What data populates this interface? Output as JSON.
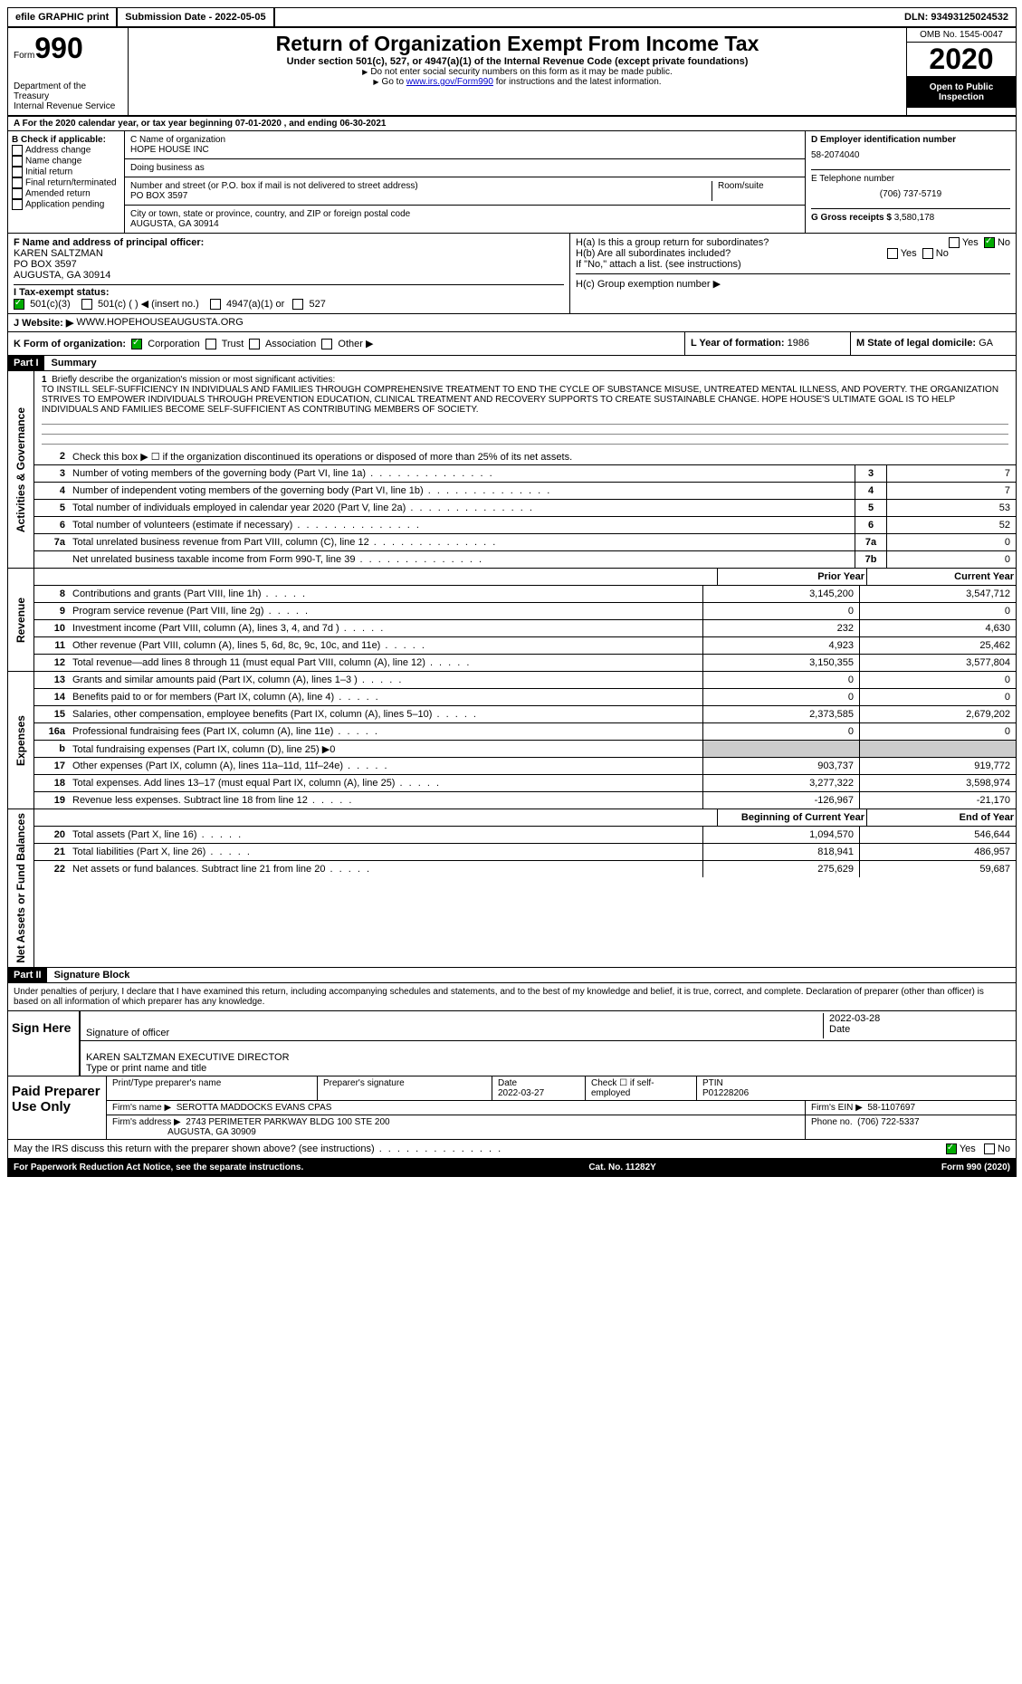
{
  "topbar": {
    "efile": "efile GRAPHIC print",
    "submission": "Submission Date - 2022-05-05",
    "dln_label": "DLN:",
    "dln": "93493125024532"
  },
  "header": {
    "form_word": "Form",
    "form_num": "990",
    "dept": "Department of the Treasury",
    "irs": "Internal Revenue Service",
    "title": "Return of Organization Exempt From Income Tax",
    "subtitle": "Under section 501(c), 527, or 4947(a)(1) of the Internal Revenue Code (except private foundations)",
    "note1": "Do not enter social security numbers on this form as it may be made public.",
    "note2_pre": "Go to ",
    "note2_link": "www.irs.gov/Form990",
    "note2_post": " for instructions and the latest information.",
    "omb": "OMB No. 1545-0047",
    "year": "2020",
    "open": "Open to Public Inspection"
  },
  "rowA": "A For the 2020 calendar year, or tax year beginning 07-01-2020   , and ending 06-30-2021",
  "colB": {
    "label": "B Check if applicable:",
    "items": [
      "Address change",
      "Name change",
      "Initial return",
      "Final return/terminated",
      "Amended return",
      "Application pending"
    ]
  },
  "colC": {
    "name_label": "C Name of organization",
    "name": "HOPE HOUSE INC",
    "dba": "Doing business as",
    "addr_label": "Number and street (or P.O. box if mail is not delivered to street address)",
    "room": "Room/suite",
    "addr": "PO BOX 3597",
    "city_label": "City or town, state or province, country, and ZIP or foreign postal code",
    "city": "AUGUSTA, GA  30914"
  },
  "colD": {
    "ein_label": "D Employer identification number",
    "ein": "58-2074040",
    "phone_label": "E Telephone number",
    "phone": "(706) 737-5719",
    "gross_label": "G Gross receipts $",
    "gross": "3,580,178"
  },
  "rowF": {
    "label": "F Name and address of principal officer:",
    "name": "KAREN SALTZMAN",
    "addr1": "PO BOX 3597",
    "addr2": "AUGUSTA, GA  30914"
  },
  "rowH": {
    "ha": "H(a)  Is this a group return for subordinates?",
    "hb": "H(b)  Are all subordinates included?",
    "hb_note": "If \"No,\" attach a list. (see instructions)",
    "hc": "H(c)  Group exemption number ▶",
    "yes": "Yes",
    "no": "No"
  },
  "rowI": {
    "label": "I   Tax-exempt status:",
    "opt1": "501(c)(3)",
    "opt2": "501(c) (  ) ◀ (insert no.)",
    "opt3": "4947(a)(1) or",
    "opt4": "527"
  },
  "rowJ": {
    "label": "J  Website: ▶",
    "val": "WWW.HOPEHOUSEAUGUSTA.ORG"
  },
  "rowK": {
    "label": "K Form of organization:",
    "corp": "Corporation",
    "trust": "Trust",
    "assoc": "Association",
    "other": "Other ▶"
  },
  "rowL": {
    "label": "L Year of formation:",
    "val": "1986"
  },
  "rowM": {
    "label": "M State of legal domicile:",
    "val": "GA"
  },
  "part1": {
    "header": "Part I",
    "title": "Summary",
    "line1_label": "Briefly describe the organization's mission or most significant activities:",
    "mission": "TO INSTILL SELF-SUFFICIENCY IN INDIVIDUALS AND FAMILIES THROUGH COMPREHENSIVE TREATMENT TO END THE CYCLE OF SUBSTANCE MISUSE, UNTREATED MENTAL ILLNESS, AND POVERTY. THE ORGANIZATION STRIVES TO EMPOWER INDIVIDUALS THROUGH PREVENTION EDUCATION, CLINICAL TREATMENT AND RECOVERY SUPPORTS TO CREATE SUSTAINABLE CHANGE. HOPE HOUSE'S ULTIMATE GOAL IS TO HELP INDIVIDUALS AND FAMILIES BECOME SELF-SUFFICIENT AS CONTRIBUTING MEMBERS OF SOCIETY.",
    "line2": "Check this box ▶ ☐  if the organization discontinued its operations or disposed of more than 25% of its net assets.",
    "vlabel_gov": "Activities & Governance",
    "vlabel_rev": "Revenue",
    "vlabel_exp": "Expenses",
    "vlabel_net": "Net Assets or Fund Balances"
  },
  "govLines": [
    {
      "n": "3",
      "d": "Number of voting members of the governing body (Part VI, line 1a)",
      "b": "3",
      "v": "7"
    },
    {
      "n": "4",
      "d": "Number of independent voting members of the governing body (Part VI, line 1b)",
      "b": "4",
      "v": "7"
    },
    {
      "n": "5",
      "d": "Total number of individuals employed in calendar year 2020 (Part V, line 2a)",
      "b": "5",
      "v": "53"
    },
    {
      "n": "6",
      "d": "Total number of volunteers (estimate if necessary)",
      "b": "6",
      "v": "52"
    },
    {
      "n": "7a",
      "d": "Total unrelated business revenue from Part VIII, column (C), line 12",
      "b": "7a",
      "v": "0"
    },
    {
      "n": "",
      "d": "Net unrelated business taxable income from Form 990-T, line 39",
      "b": "7b",
      "v": "0"
    }
  ],
  "colHeaders": {
    "prior": "Prior Year",
    "current": "Current Year",
    "begin": "Beginning of Current Year",
    "end": "End of Year"
  },
  "revLines": [
    {
      "n": "8",
      "d": "Contributions and grants (Part VIII, line 1h)",
      "p": "3,145,200",
      "c": "3,547,712"
    },
    {
      "n": "9",
      "d": "Program service revenue (Part VIII, line 2g)",
      "p": "0",
      "c": "0"
    },
    {
      "n": "10",
      "d": "Investment income (Part VIII, column (A), lines 3, 4, and 7d )",
      "p": "232",
      "c": "4,630"
    },
    {
      "n": "11",
      "d": "Other revenue (Part VIII, column (A), lines 5, 6d, 8c, 9c, 10c, and 11e)",
      "p": "4,923",
      "c": "25,462"
    },
    {
      "n": "12",
      "d": "Total revenue—add lines 8 through 11 (must equal Part VIII, column (A), line 12)",
      "p": "3,150,355",
      "c": "3,577,804"
    }
  ],
  "expLines": [
    {
      "n": "13",
      "d": "Grants and similar amounts paid (Part IX, column (A), lines 1–3 )",
      "p": "0",
      "c": "0"
    },
    {
      "n": "14",
      "d": "Benefits paid to or for members (Part IX, column (A), line 4)",
      "p": "0",
      "c": "0"
    },
    {
      "n": "15",
      "d": "Salaries, other compensation, employee benefits (Part IX, column (A), lines 5–10)",
      "p": "2,373,585",
      "c": "2,679,202"
    },
    {
      "n": "16a",
      "d": "Professional fundraising fees (Part IX, column (A), line 11e)",
      "p": "0",
      "c": "0"
    },
    {
      "n": "b",
      "d": "Total fundraising expenses (Part IX, column (D), line 25) ▶0",
      "p": "",
      "c": "",
      "grey": true
    },
    {
      "n": "17",
      "d": "Other expenses (Part IX, column (A), lines 11a–11d, 11f–24e)",
      "p": "903,737",
      "c": "919,772"
    },
    {
      "n": "18",
      "d": "Total expenses. Add lines 13–17 (must equal Part IX, column (A), line 25)",
      "p": "3,277,322",
      "c": "3,598,974"
    },
    {
      "n": "19",
      "d": "Revenue less expenses. Subtract line 18 from line 12",
      "p": "-126,967",
      "c": "-21,170"
    }
  ],
  "netLines": [
    {
      "n": "20",
      "d": "Total assets (Part X, line 16)",
      "p": "1,094,570",
      "c": "546,644"
    },
    {
      "n": "21",
      "d": "Total liabilities (Part X, line 26)",
      "p": "818,941",
      "c": "486,957"
    },
    {
      "n": "22",
      "d": "Net assets or fund balances. Subtract line 21 from line 20",
      "p": "275,629",
      "c": "59,687"
    }
  ],
  "part2": {
    "header": "Part II",
    "title": "Signature Block",
    "decl": "Under penalties of perjury, I declare that I have examined this return, including accompanying schedules and statements, and to the best of my knowledge and belief, it is true, correct, and complete. Declaration of preparer (other than officer) is based on all information of which preparer has any knowledge."
  },
  "sign": {
    "label": "Sign Here",
    "sig_officer": "Signature of officer",
    "date": "Date",
    "date_val": "2022-03-28",
    "name": "KAREN SALTZMAN  EXECUTIVE DIRECTOR",
    "name_label": "Type or print name and title"
  },
  "prep": {
    "label": "Paid Preparer Use Only",
    "name_label": "Print/Type preparer's name",
    "sig_label": "Preparer's signature",
    "date_label": "Date",
    "date_val": "2022-03-27",
    "check_label": "Check ☐ if self-employed",
    "ptin_label": "PTIN",
    "ptin": "P01228206",
    "firm_name_label": "Firm's name    ▶",
    "firm_name": "SEROTTA MADDOCKS EVANS CPAS",
    "firm_ein_label": "Firm's EIN ▶",
    "firm_ein": "58-1107697",
    "firm_addr_label": "Firm's address ▶",
    "firm_addr": "2743 PERIMETER PARKWAY BLDG 100 STE 200",
    "firm_addr2": "AUGUSTA, GA  30909",
    "phone_label": "Phone no.",
    "phone": "(706) 722-5337"
  },
  "discuss": "May the IRS discuss this return with the preparer shown above? (see instructions)",
  "footer": {
    "left": "For Paperwork Reduction Act Notice, see the separate instructions.",
    "mid": "Cat. No. 11282Y",
    "right": "Form 990 (2020)"
  }
}
